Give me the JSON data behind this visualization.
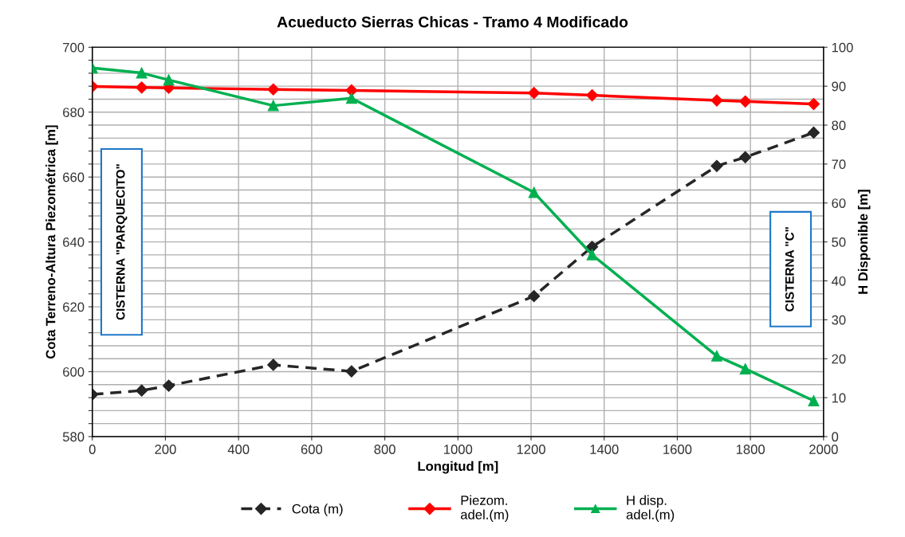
{
  "chart_data": {
    "type": "line",
    "title": "Acueducto Sierras Chicas - Tramo 4 Modificado",
    "xlabel": "Longitud [m]",
    "ylabel": "Cota Terreno-Altura Piezométrica [m]",
    "y2label": "H Disponible [m]",
    "x": [
      0,
      135,
      209,
      495,
      709,
      1208,
      1367,
      1708,
      1786,
      1973
    ],
    "series": [
      {
        "name": "Cota (m)",
        "color": "#262626",
        "line_style": "dashed",
        "marker": "diamond",
        "values": [
          593.0,
          594.2,
          595.7,
          602.1,
          600.1,
          623.3,
          638.5,
          663.4,
          666.1,
          673.7
        ]
      },
      {
        "name": "Piezom.\nadel.(m)",
        "color": "#ff0000",
        "line_style": "solid",
        "marker": "diamond",
        "values": [
          687.9,
          687.6,
          687.5,
          687.0,
          686.7,
          685.9,
          685.2,
          683.6,
          683.3,
          682.5
        ]
      },
      {
        "name": "H disp.\nadel.(m)",
        "color": "#00b050",
        "line_style": "solid",
        "marker": "triangle",
        "axis": "y2",
        "values": [
          94.7,
          93.4,
          91.6,
          85.0,
          86.9,
          62.7,
          46.7,
          20.7,
          17.4,
          9.2
        ]
      }
    ],
    "xlim": [
      0,
      2000
    ],
    "xticks": [
      0,
      200,
      400,
      600,
      800,
      1000,
      1200,
      1400,
      1600,
      1800,
      2000
    ],
    "ylim": [
      580,
      700
    ],
    "yticks": [
      580,
      {
        "value": 584,
        "label": null
      },
      {
        "value": 588,
        "label": null
      },
      {
        "value": 592,
        "label": null
      },
      {
        "value": 596,
        "label": null
      },
      600,
      {
        "value": 604,
        "label": null
      },
      {
        "value": 608,
        "label": null
      },
      {
        "value": 612,
        "label": null
      },
      {
        "value": 616,
        "label": null
      },
      620,
      {
        "value": 624,
        "label": null
      },
      {
        "value": 628,
        "label": null
      },
      {
        "value": 632,
        "label": null
      },
      {
        "value": 636,
        "label": null
      },
      640,
      {
        "value": 644,
        "label": null
      },
      {
        "value": 648,
        "label": null
      },
      {
        "value": 652,
        "label": null
      },
      {
        "value": 656,
        "label": null
      },
      660,
      {
        "value": 664,
        "label": null
      },
      {
        "value": 668,
        "label": null
      },
      {
        "value": 672,
        "label": null
      },
      {
        "value": 676,
        "label": null
      },
      680,
      {
        "value": 684,
        "label": null
      },
      {
        "value": 688,
        "label": null
      },
      {
        "value": 692,
        "label": null
      },
      {
        "value": 696,
        "label": null
      },
      700
    ],
    "y2lim": [
      0,
      100
    ],
    "y2ticks": [
      0,
      10,
      20,
      30,
      40,
      50,
      60,
      70,
      80,
      90,
      100
    ],
    "grid": true,
    "legend": "bottom",
    "annotations": [
      "CISTERNA \"PARQUECITO\"",
      "CISTERNA \"C\""
    ]
  }
}
